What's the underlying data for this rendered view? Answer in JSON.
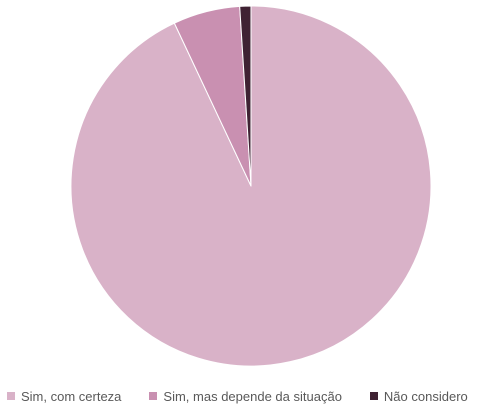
{
  "chart_data": {
    "type": "pie",
    "title": "",
    "categories": [
      "Sim, com certeza",
      "Sim, mas depende da situação",
      "Não considero"
    ],
    "values": [
      93,
      6,
      1
    ],
    "colors": [
      "#d9b2c8",
      "#c990b1",
      "#3f2233"
    ],
    "edge_color": "#ffffff",
    "start_angle_deg": 0,
    "direction": "clockwise",
    "legend_position": "bottom"
  },
  "legend": {
    "items": [
      {
        "label": "Sim, com certeza",
        "color": "#d9b2c8"
      },
      {
        "label": "Sim, mas depende da situação",
        "color": "#c990b1"
      },
      {
        "label": "Não considero",
        "color": "#3f2233"
      }
    ]
  }
}
